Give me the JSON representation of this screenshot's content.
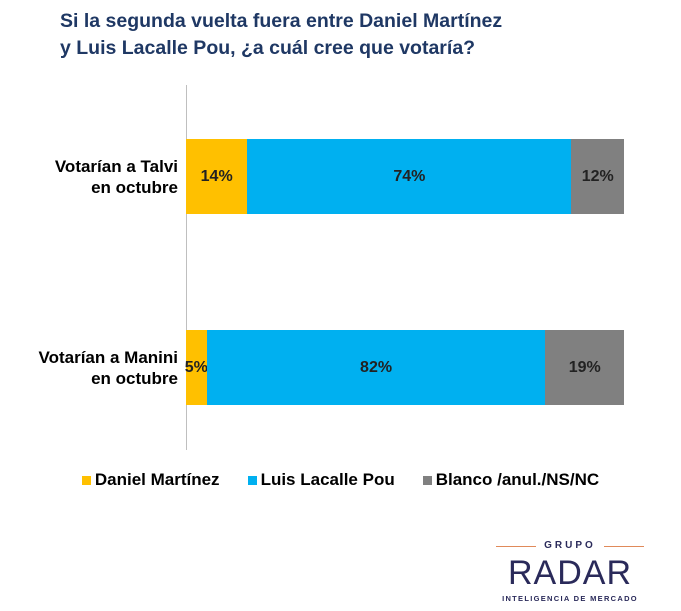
{
  "chart_data": {
    "type": "bar",
    "orientation": "horizontal",
    "stacked": true,
    "normalized": true,
    "title": [
      "Si la segunda vuelta fuera entre Daniel Martínez",
      "y Luis Lacalle Pou, ¿a cuál cree que votaría?"
    ],
    "categories": [
      [
        "Votarían a Talvi",
        "en octubre"
      ],
      [
        "Votarían a Manini",
        "en octubre"
      ]
    ],
    "series": [
      {
        "name": "Daniel Martínez",
        "color": "#ffc000",
        "values": [
          14,
          5
        ],
        "labels": [
          "14%",
          "5%"
        ]
      },
      {
        "name": "Luis Lacalle Pou",
        "color": "#00b0f0",
        "values": [
          74,
          82
        ],
        "labels": [
          "74%",
          "82%"
        ]
      },
      {
        "name": "Blanco /anul./NS/NC",
        "color": "#808080",
        "values": [
          12,
          19
        ],
        "labels": [
          "12%",
          "19%"
        ]
      }
    ],
    "legend": "bottom",
    "grid": false
  },
  "logo": {
    "top": "GRUPO",
    "name": "RADAR",
    "tagline": "INTELIGENCIA DE MERCADO"
  }
}
